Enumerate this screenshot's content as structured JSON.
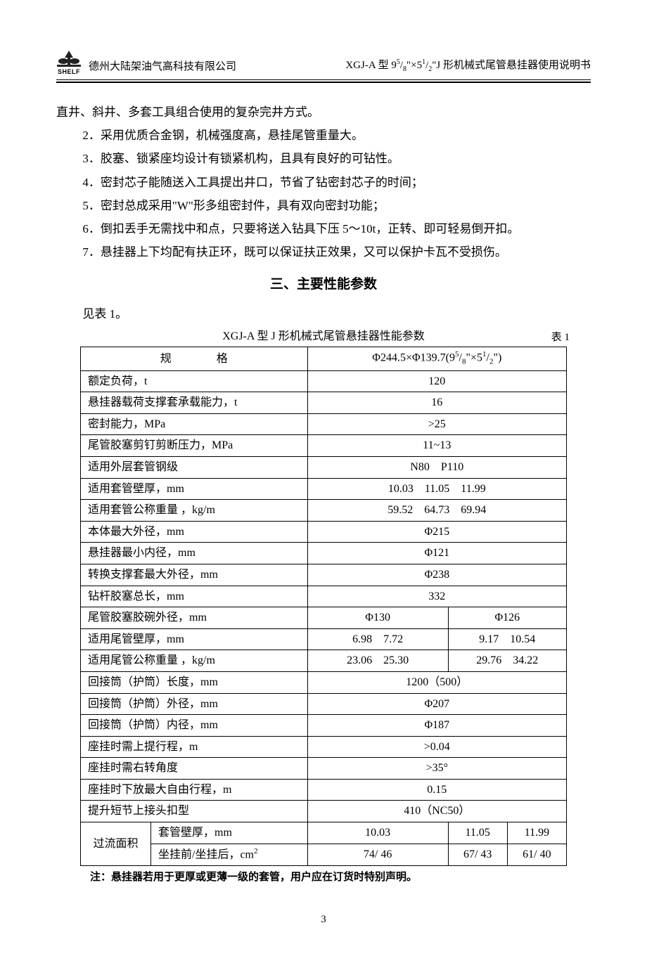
{
  "header": {
    "logo_text": "SHELF",
    "company": "德州大陆架油气高科技有限公司",
    "doc_title_html": "XGJ-A 型 9<sup>5</sup>/<sub>8</sub>\"×5<sup>1</sup>/<sub>2</sub>\"J 形机械式尾管悬挂器使用说明书"
  },
  "intro_line": "直井、斜井、多套工具组合使用的复杂完井方式。",
  "list_items": [
    "2．采用优质合金钢，机械强度高，悬挂尾管重量大。",
    "3．胶塞、锁紧座均设计有锁紧机构，且具有良好的可钻性。",
    "4．密封芯子能随送入工具提出井口，节省了钻密封芯子的时间；",
    "5．密封总成采用\"W\"形多组密封件，具有双向密封功能；",
    "6．倒扣丢手无需找中和点，只要将送入钻具下压 5～10t，正转、即可轻易倒开扣。",
    "7．悬挂器上下均配有扶正环，既可以保证扶正效果，又可以保护卡瓦不受损伤。"
  ],
  "section_title": "三、主要性能参数",
  "see_table": "见表 1。",
  "table_caption": "XGJ-A 型 J 形机械式尾管悬挂器性能参数",
  "table_number": "表 1",
  "spec_header_label": "规格",
  "spec_header_value_html": "Φ244.5×Φ139.7(9<span class=\"sup\">5</span>/<span class=\"sub\">8</span>\"×5<span class=\"sup\">1</span>/<span class=\"sub\">2</span>\")",
  "rows_single": [
    {
      "label": "额定负荷，t",
      "value": "120"
    },
    {
      "label": "悬挂器载荷支撑套承载能力，t",
      "value": "16"
    },
    {
      "label": "密封能力，MPa",
      "value": ">25"
    },
    {
      "label": "尾管胶塞剪钉剪断压力，MPa",
      "value": "11~13"
    },
    {
      "label": "适用外层套管钢级",
      "value": "N80　P110"
    },
    {
      "label": "适用套管壁厚，mm",
      "value": "10.03　11.05　11.99"
    },
    {
      "label": "适用套管公称重量 ，kg/m",
      "value": "59.52　64.73　69.94"
    },
    {
      "label": "本体最大外径，mm",
      "value": "Φ215"
    },
    {
      "label": "悬挂器最小内径，mm",
      "value": "Φ121"
    },
    {
      "label": "转换支撑套最大外径，mm",
      "value": "Φ238"
    },
    {
      "label": "钻杆胶塞总长，mm",
      "value": "332"
    }
  ],
  "rows_double": [
    {
      "label": "尾管胶塞胶碗外径，mm",
      "v1": "Φ130",
      "v2": "Φ126"
    },
    {
      "label": "适用尾管壁厚，mm",
      "v1": "6.98　7.72",
      "v2": "9.17　10.54"
    },
    {
      "label": "适用尾管公称重量 ，kg/m",
      "v1": "23.06　25.30",
      "v2": "29.76　34.22"
    }
  ],
  "rows_single2": [
    {
      "label": "回接筒（护筒）长度，mm",
      "value": "1200（500）"
    },
    {
      "label": "回接筒（护筒）外径，mm",
      "value": "Φ207"
    },
    {
      "label": "回接筒（护筒）内径，mm",
      "value": "Φ187"
    },
    {
      "label": "座挂时需上提行程，m",
      "value": ">0.04"
    },
    {
      "label": "座挂时需右转角度",
      "value": ">35°"
    },
    {
      "label": "座挂时下放最大自由行程，m",
      "value": "0.15"
    },
    {
      "label": "提升短节上接头扣型",
      "value": "410（NC50）"
    }
  ],
  "flow_area": {
    "group_label": "过流面积",
    "row1": {
      "label": "套管壁厚，mm",
      "c1": "10.03",
      "c2": "11.05",
      "c3": "11.99"
    },
    "row2": {
      "label_html": "坐挂前/坐挂后，cm<span class=\"sup\">2</span>",
      "c1": "74/ 46",
      "c2": "67/ 43",
      "c3": "61/ 40"
    }
  },
  "note": "注：悬挂器若用于更厚或更薄一级的套管，用户应在订货时特别声明。",
  "page_number": "3",
  "colors": {
    "text": "#000000",
    "background": "#ffffff",
    "border": "#000000",
    "logo_icon": "#222222"
  }
}
